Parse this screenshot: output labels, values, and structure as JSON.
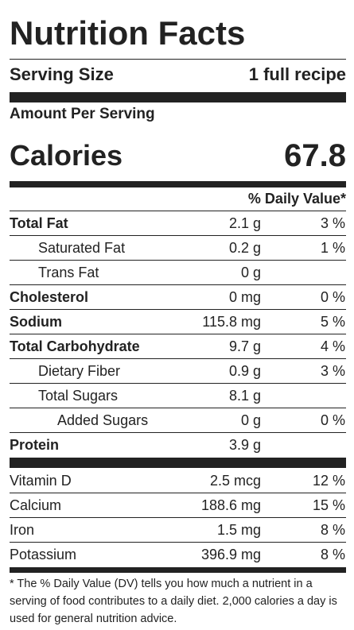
{
  "title": "Nutrition Facts",
  "serving": {
    "label": "Serving Size",
    "value": "1 full recipe"
  },
  "amount_per_serving": "Amount Per Serving",
  "calories": {
    "label": "Calories",
    "value": "67.8"
  },
  "dv_header": "% Daily Value*",
  "nutrients": [
    {
      "name": "Total Fat",
      "amount": "2.1 g",
      "dv": "3 %"
    },
    {
      "name": "Saturated Fat",
      "amount": "0.2 g",
      "dv": "1 %"
    },
    {
      "name": "Trans Fat",
      "amount": "0 g",
      "dv": ""
    },
    {
      "name": "Cholesterol",
      "amount": "0 mg",
      "dv": "0 %"
    },
    {
      "name": "Sodium",
      "amount": "115.8 mg",
      "dv": "5 %"
    },
    {
      "name": "Total Carbohydrate",
      "amount": "9.7 g",
      "dv": "4 %"
    },
    {
      "name": "Dietary Fiber",
      "amount": "0.9 g",
      "dv": "3 %"
    },
    {
      "name": "Total Sugars",
      "amount": "8.1 g",
      "dv": ""
    },
    {
      "name": "Added Sugars",
      "amount": "0 g",
      "dv": "0 %"
    },
    {
      "name": "Protein",
      "amount": "3.9 g",
      "dv": ""
    }
  ],
  "vitamins": [
    {
      "name": "Vitamin D",
      "amount": "2.5 mcg",
      "dv": "12 %"
    },
    {
      "name": "Calcium",
      "amount": "188.6 mg",
      "dv": "15 %"
    },
    {
      "name": "Iron",
      "amount": "1.5 mg",
      "dv": "8 %"
    },
    {
      "name": "Potassium",
      "amount": "396.9 mg",
      "dv": "8 %"
    }
  ],
  "footnote": "* The % Daily Value (DV) tells you how much a nutrient in a serving of food contributes to a daily diet. 2,000 calories a day is used for general nutrition advice."
}
